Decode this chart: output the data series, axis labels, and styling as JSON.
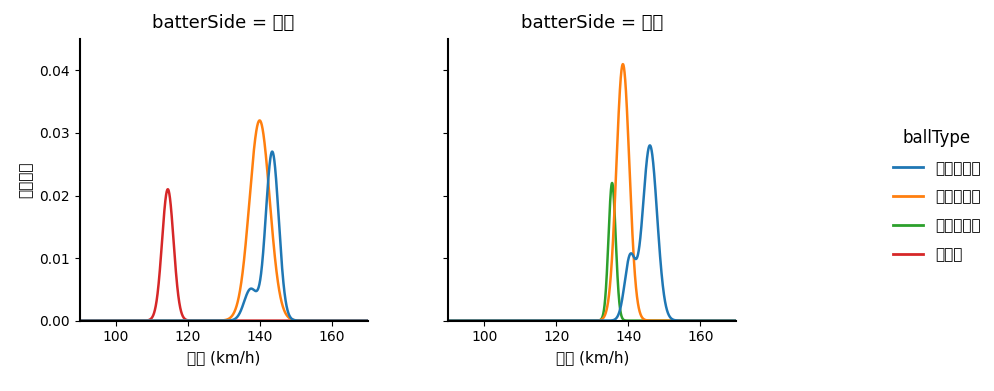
{
  "title_left": "batterSide = 右打",
  "title_right": "batterSide = 左打",
  "xlabel": "球速 (km/h)",
  "ylabel": "確率密度",
  "legend_title": "ballType",
  "legend_labels": [
    "ストレート",
    "ツーシーム",
    "スライダー",
    "パーム"
  ],
  "colors": {
    "ストレート": "#1f77b4",
    "ツーシーム": "#ff7f0e",
    "スライダー": "#2ca02c",
    "パーム": "#d62728"
  },
  "xlim": [
    90,
    170
  ],
  "ylim": [
    0,
    0.045
  ],
  "yticks": [
    0.0,
    0.01,
    0.02,
    0.03,
    0.04
  ],
  "xticks": [
    100,
    120,
    140,
    160
  ],
  "background_color": "#ffffff",
  "right_batter": {
    "ストレート": {
      "components": [
        {
          "mean": 143.5,
          "std": 1.8,
          "peak": 0.027
        },
        {
          "mean": 137.5,
          "std": 1.8,
          "peak": 0.005
        }
      ]
    },
    "ツーシーム": {
      "components": [
        {
          "mean": 140.0,
          "std": 2.8,
          "peak": 0.032
        }
      ]
    },
    "パーム": {
      "components": [
        {
          "mean": 114.5,
          "std": 1.6,
          "peak": 0.021
        }
      ]
    }
  },
  "left_batter": {
    "ストレート": {
      "components": [
        {
          "mean": 146.0,
          "std": 2.0,
          "peak": 0.028
        },
        {
          "mean": 140.5,
          "std": 1.5,
          "peak": 0.01
        }
      ]
    },
    "ツーシーム": {
      "components": [
        {
          "mean": 138.5,
          "std": 1.8,
          "peak": 0.041
        }
      ]
    },
    "スライダー": {
      "components": [
        {
          "mean": 135.5,
          "std": 1.0,
          "peak": 0.022
        }
      ]
    }
  },
  "plot_order_right": [
    "パーム",
    "ツーシーム",
    "ストレート"
  ],
  "plot_order_left": [
    "スライダー",
    "ツーシーム",
    "ストレート"
  ]
}
